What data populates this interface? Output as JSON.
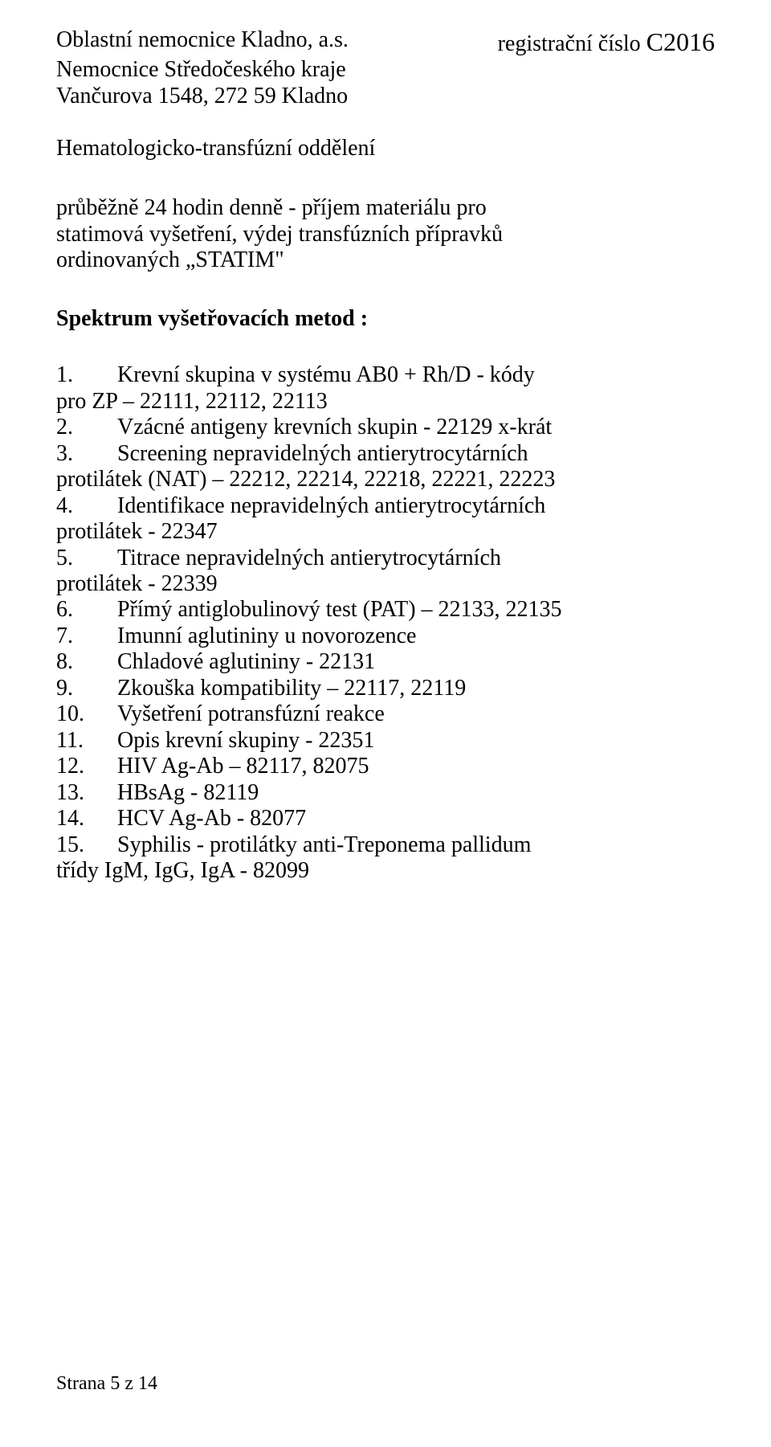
{
  "header": {
    "org_line1": "Oblastní nemocnice Kladno, a.s.",
    "org_line2": "Nemocnice Středočeského kraje",
    "org_line3": "Vančurova 1548, 272 59 Kladno",
    "reg_prefix": "registrační číslo ",
    "reg_code": "C2016"
  },
  "department": "Hematologicko-transfúzní oddělení",
  "intro": {
    "line1": "průběžně 24 hodin denně - příjem materiálu pro",
    "line2": "statimová vyšetření, výdej transfúzních přípravků",
    "line3": "ordinovaných „STATIM\""
  },
  "section_title": "Spektrum vyšetřovacích metod :",
  "items": [
    {
      "n": "1.",
      "first": "Krevní skupina v systému AB0 + Rh/D - kódy",
      "cont": "pro ZP – 22111, 22112, 22113"
    },
    {
      "n": "2.",
      "first": "Vzácné antigeny krevních skupin - 22129 x-krát",
      "cont": ""
    },
    {
      "n": "3.",
      "first": "Screening nepravidelných antierytrocytárních",
      "cont": "protilátek (NAT) – 22212, 22214, 22218, 22221, 22223"
    },
    {
      "n": "4.",
      "first": "Identifikace nepravidelných antierytrocytárních",
      "cont": "protilátek  - 22347"
    },
    {
      "n": "5.",
      "first": "Titrace nepravidelných antierytrocytárních",
      "cont": "protilátek - 22339"
    },
    {
      "n": "6.",
      "first": "Přímý antiglobulinový test (PAT) – 22133, 22135",
      "cont": ""
    },
    {
      "n": "7.",
      "first": "Imunní aglutininy u novorozence",
      "cont": ""
    },
    {
      "n": "8.",
      "first": "Chladové aglutininy - 22131",
      "cont": ""
    },
    {
      "n": "9.",
      "first": "Zkouška kompatibility – 22117, 22119",
      "cont": ""
    },
    {
      "n": "10.",
      "first": "Vyšetření potransfúzní reakce",
      "cont": ""
    },
    {
      "n": "11.",
      "first": "Opis krevní skupiny - 22351",
      "cont": ""
    },
    {
      "n": "12.",
      "first": "HIV Ag-Ab – 82117, 82075",
      "cont": ""
    },
    {
      "n": "13.",
      "first": "HBsAg - 82119",
      "cont": ""
    },
    {
      "n": "14.",
      "first": "HCV Ag-Ab - 82077",
      "cont": ""
    },
    {
      "n": "15.",
      "first": "Syphilis - protilátky anti-Treponema pallidum",
      "cont": "třídy IgM, IgG, IgA - 82099"
    }
  ],
  "footer": "Strana 5 z 14"
}
